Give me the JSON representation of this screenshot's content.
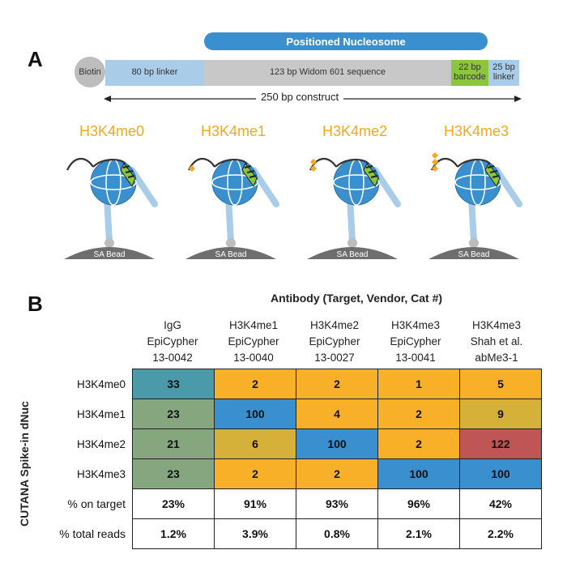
{
  "panel_a": {
    "letter": "A",
    "positioned_label": "Positioned Nucleosome",
    "biotin_label": "Biotin",
    "segments": {
      "linker80": "80 bp linker",
      "widom": "123 bp Widom 601 sequence",
      "barcode": "22 bp barcode",
      "linker25": "25 bp linker"
    },
    "construct_label": "250 bp construct",
    "nucleosomes": [
      {
        "title": "H3K4me0",
        "mark_count": 0
      },
      {
        "title": "H3K4me1",
        "mark_count": 1
      },
      {
        "title": "H3K4me2",
        "mark_count": 2
      },
      {
        "title": "H3K4me3",
        "mark_count": 3
      }
    ],
    "bead_label": "SA Bead"
  },
  "panel_b": {
    "letter": "B",
    "table_title": "Antibody (Target, Vendor, Cat #)",
    "y_label": "CUTANA Spike-in dNuc",
    "columns": [
      {
        "l1": "IgG",
        "l2": "EpiCypher",
        "l3": "13-0042"
      },
      {
        "l1": "H3K4me1",
        "l2": "EpiCypher",
        "l3": "13-0040"
      },
      {
        "l1": "H3K4me2",
        "l2": "EpiCypher",
        "l3": "13-0027"
      },
      {
        "l1": "H3K4me3",
        "l2": "EpiCypher",
        "l3": "13-0041"
      },
      {
        "l1": "H3K4me3",
        "l2": "Shah et al.",
        "l3": "abMe3-1"
      }
    ],
    "rows": [
      {
        "label": "H3K4me0",
        "values": [
          "33",
          "2",
          "2",
          "1",
          "5"
        ],
        "colors": [
          "#4a9aaa",
          "#f7b027",
          "#f7b027",
          "#f7b027",
          "#f7b027"
        ]
      },
      {
        "label": "H3K4me1",
        "values": [
          "23",
          "100",
          "4",
          "2",
          "9"
        ],
        "colors": [
          "#86a67f",
          "#3a8fcf",
          "#f7b027",
          "#f7b027",
          "#d6b13a"
        ]
      },
      {
        "label": "H3K4me2",
        "values": [
          "21",
          "6",
          "100",
          "2",
          "122"
        ],
        "colors": [
          "#86a67f",
          "#d6b13a",
          "#3a8fcf",
          "#f7b027",
          "#c05555"
        ]
      },
      {
        "label": "H3K4me3",
        "values": [
          "23",
          "2",
          "2",
          "100",
          "100"
        ],
        "colors": [
          "#86a67f",
          "#f7b027",
          "#f7b027",
          "#3a8fcf",
          "#3a8fcf"
        ]
      }
    ],
    "summary": [
      {
        "label": "% on target",
        "values": [
          "23%",
          "91%",
          "93%",
          "96%",
          "42%"
        ]
      },
      {
        "label": "% total reads",
        "values": [
          "1.2%",
          "3.9%",
          "0.8%",
          "2.1%",
          "2.2%"
        ]
      }
    ]
  }
}
